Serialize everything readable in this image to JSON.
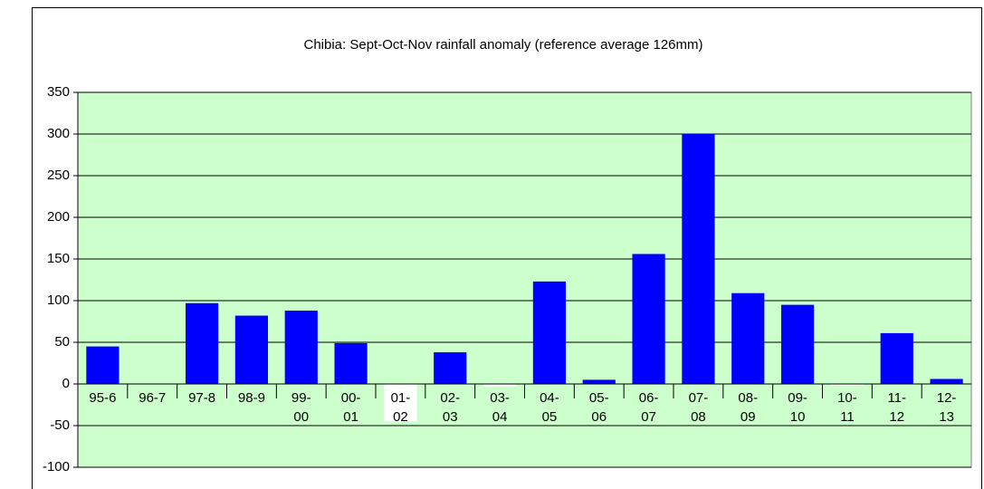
{
  "chart_data": {
    "type": "bar",
    "title": "Chibia: Sept-Oct-Nov rainfall anomaly (reference average 126mm)",
    "categories": [
      "95-6",
      "96-7",
      "97-8",
      "98-9",
      "99-00",
      "00-01",
      "01-02",
      "02-03",
      "03-04",
      "04-05",
      "05-06",
      "06-07",
      "07-08",
      "08-09",
      "09-10",
      "10-11",
      "11-12",
      "12-13"
    ],
    "values": [
      45,
      0,
      97,
      82,
      88,
      49,
      -45,
      38,
      -3,
      123,
      5,
      156,
      300,
      109,
      95,
      -2,
      61,
      6
    ],
    "color": "#0000ff",
    "negative_color": "#ffffff",
    "background": "#ccffcc",
    "ylim": [
      -100,
      350
    ],
    "yticks": [
      -100,
      -50,
      0,
      50,
      100,
      150,
      200,
      250,
      300,
      350
    ],
    "grid": true
  }
}
